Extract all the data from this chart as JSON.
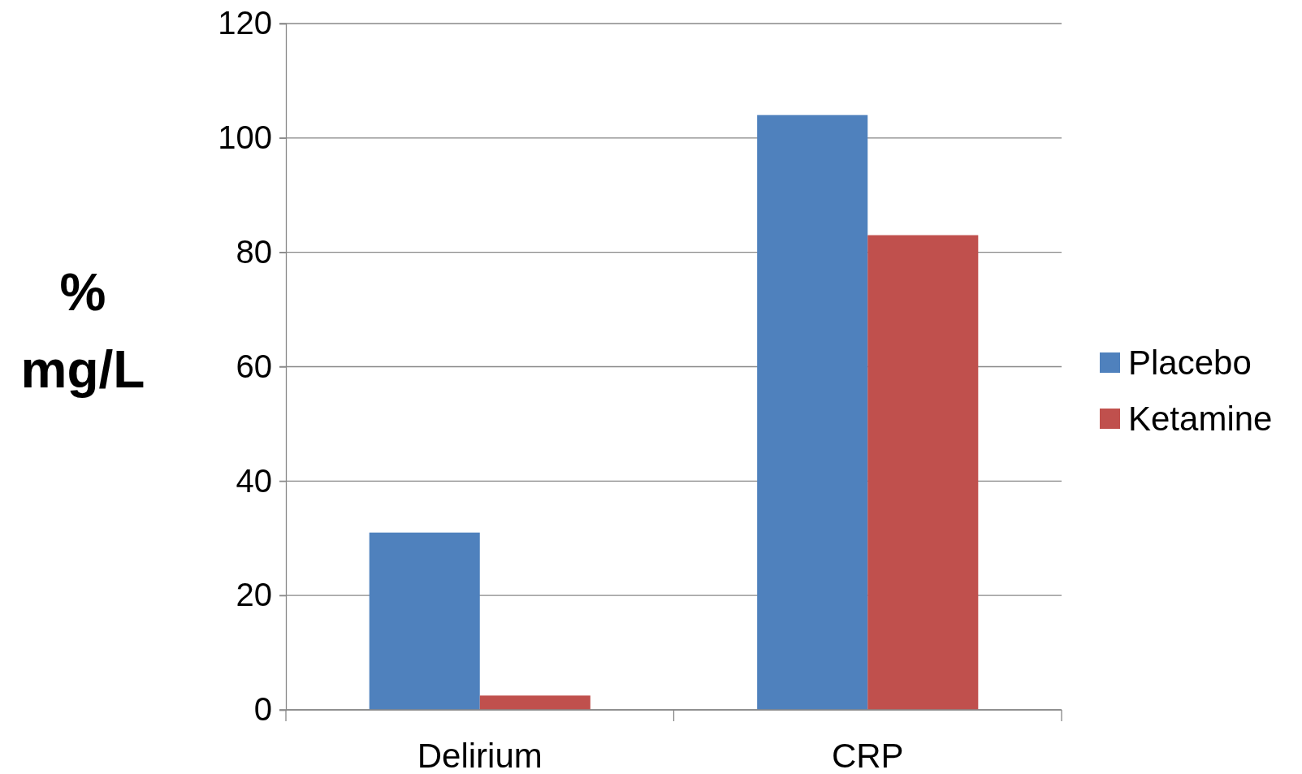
{
  "chart_data": {
    "type": "bar",
    "ylabel": "%\nmg/L",
    "categories": [
      "Delirium",
      "CRP"
    ],
    "series": [
      {
        "name": "Placebo",
        "color": "#4f81bd",
        "values": [
          31,
          104
        ]
      },
      {
        "name": "Ketamine",
        "color": "#c0504d",
        "values": [
          2.5,
          83
        ]
      }
    ],
    "ylim": [
      0,
      120
    ],
    "yticks": [
      0,
      20,
      40,
      60,
      80,
      100,
      120
    ],
    "grid": "y",
    "legend": "right"
  }
}
